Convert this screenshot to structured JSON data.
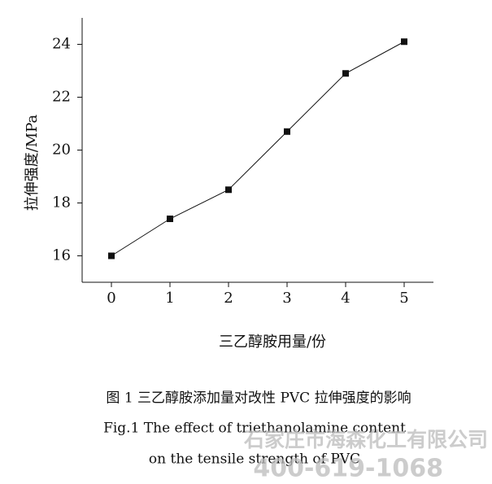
{
  "chart_data": {
    "type": "line",
    "x": [
      0,
      1,
      2,
      3,
      4,
      5
    ],
    "values": [
      16.0,
      17.4,
      18.5,
      20.7,
      22.9,
      24.1
    ],
    "color": "#111111",
    "xlim": [
      -0.5,
      5.5
    ],
    "xticks": [
      0,
      1,
      2,
      3,
      4,
      5
    ],
    "ylim": [
      15,
      25
    ],
    "yticks": [
      16,
      18,
      20,
      22,
      24
    ],
    "xlabel": "三乙醇胺用量/份",
    "ylabel": "拉伸强度/MPa",
    "caption_cn": "图 1  三乙醇胺添加量对改性 PVC 拉伸强度的影响",
    "caption_en_1": "Fig.1    The effect of triethanolamine content",
    "caption_en_2": "on the tensile strength of PVC",
    "watermark_1": "石家庄市海森化工有限公司",
    "watermark_2": "400-619-1068"
  }
}
